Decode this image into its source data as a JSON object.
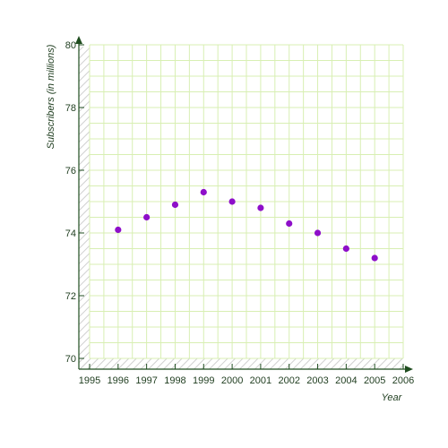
{
  "chart_data": {
    "type": "scatter",
    "title": "",
    "xlabel": "Year",
    "ylabel": "Subscribers (in millions)",
    "xlim": [
      1995,
      2006
    ],
    "ylim": [
      70,
      80
    ],
    "x_ticks": [
      1995,
      1996,
      1997,
      1998,
      1999,
      2000,
      2001,
      2002,
      2003,
      2004,
      2005,
      2006
    ],
    "y_ticks": [
      70,
      72,
      74,
      76,
      78,
      80
    ],
    "grid": true,
    "legend": "none",
    "series": [
      {
        "color": "#8e0fc9",
        "points": [
          {
            "x": 1996,
            "y": 74.1
          },
          {
            "x": 1997,
            "y": 74.5
          },
          {
            "x": 1998,
            "y": 74.9
          },
          {
            "x": 1999,
            "y": 75.3
          },
          {
            "x": 2000,
            "y": 75.0
          },
          {
            "x": 2001,
            "y": 74.8
          },
          {
            "x": 2002,
            "y": 74.3
          },
          {
            "x": 2003,
            "y": 74.0
          },
          {
            "x": 2004,
            "y": 73.5
          },
          {
            "x": 2005,
            "y": 73.2
          }
        ]
      }
    ],
    "colors": {
      "grid": "#d8efb3",
      "axis": "#1f4d1f",
      "point": "#8e0fc9"
    }
  }
}
